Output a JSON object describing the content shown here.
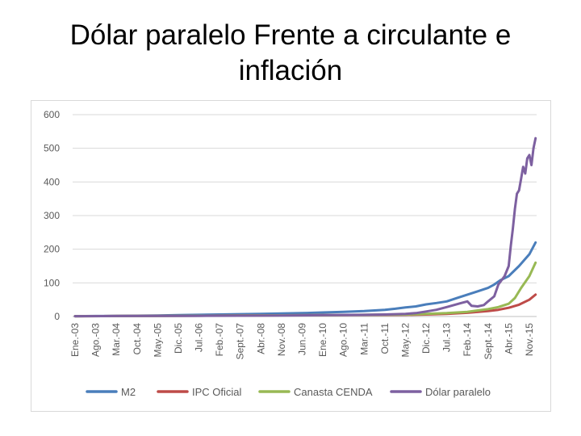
{
  "slide": {
    "title": "Dólar paralelo Frente a circulante e inflación"
  },
  "chart_data": {
    "type": "line",
    "title": "",
    "xlabel": "",
    "ylabel": "",
    "ylim": [
      0,
      600
    ],
    "yticks": [
      0,
      100,
      200,
      300,
      400,
      500,
      600
    ],
    "grid": true,
    "legend_position": "bottom",
    "categories": [
      "Ene.-03",
      "Ago.-03",
      "Mar.-04",
      "Oct.-04",
      "May.-05",
      "Dic.-05",
      "Jul.-06",
      "Feb.-07",
      "Sept.-07",
      "Abr.-08",
      "Nov.-08",
      "Jun.-09",
      "Ene.-10",
      "Ago.-10",
      "Mar.-11",
      "Oct.-11",
      "May.-12",
      "Dic.-12",
      "Jul.-13",
      "Feb.-14",
      "Sept.-14",
      "Abr.-15",
      "Nov.-15"
    ],
    "x_start": 0,
    "x_end": 22.3,
    "series": [
      {
        "name": "M2",
        "color": "#4a7ebb",
        "x": [
          0,
          1,
          2,
          3,
          4,
          5,
          6,
          7,
          8,
          9,
          10,
          11,
          12,
          13,
          14,
          15,
          15.5,
          16,
          16.5,
          17,
          17.5,
          18,
          18.5,
          19,
          19.5,
          20,
          20.3,
          20.6,
          21,
          21.5,
          22,
          22.3
        ],
        "y": [
          1,
          1.5,
          2,
          2.5,
          3,
          4,
          5,
          6,
          7,
          8,
          9,
          10,
          12,
          14,
          16,
          20,
          23,
          27,
          30,
          36,
          40,
          45,
          55,
          65,
          75,
          85,
          95,
          108,
          120,
          150,
          185,
          220
        ]
      },
      {
        "name": "IPC Oficial",
        "color": "#be4b48",
        "x": [
          0,
          2,
          4,
          6,
          8,
          10,
          12,
          14,
          16,
          17,
          18,
          19,
          20,
          20.5,
          21,
          21.5,
          22,
          22.3
        ],
        "y": [
          1,
          1.5,
          2,
          2.5,
          3,
          3.5,
          4,
          4.5,
          5,
          6,
          8,
          11,
          16,
          20,
          26,
          35,
          50,
          65
        ]
      },
      {
        "name": "Canasta CENDA",
        "color": "#98b954",
        "x": [
          0,
          2,
          4,
          6,
          8,
          10,
          12,
          14,
          16,
          17,
          18,
          19,
          19.5,
          20,
          20.5,
          21,
          21.3,
          21.6,
          22,
          22.3
        ],
        "y": [
          1,
          1.5,
          2,
          2.5,
          3,
          3.5,
          4,
          5,
          6,
          8,
          10,
          14,
          18,
          22,
          28,
          38,
          55,
          85,
          120,
          160
        ]
      },
      {
        "name": "Dólar paralelo",
        "color": "#7d60a0",
        "x": [
          0,
          2,
          4,
          6,
          8,
          10,
          12,
          14,
          15,
          16,
          16.5,
          17,
          17.5,
          18,
          18.4,
          18.7,
          19,
          19.2,
          19.5,
          19.8,
          20,
          20.3,
          20.5,
          20.8,
          21,
          21.1,
          21.2,
          21.3,
          21.4,
          21.5,
          21.6,
          21.7,
          21.8,
          21.9,
          22,
          22.1,
          22.2,
          22.3
        ],
        "y": [
          1,
          1.5,
          2,
          2,
          2.5,
          3,
          4,
          5,
          6,
          8,
          10,
          15,
          20,
          28,
          35,
          40,
          45,
          32,
          30,
          34,
          45,
          60,
          95,
          120,
          150,
          210,
          260,
          320,
          365,
          375,
          410,
          445,
          425,
          470,
          480,
          450,
          500,
          530
        ]
      }
    ]
  }
}
